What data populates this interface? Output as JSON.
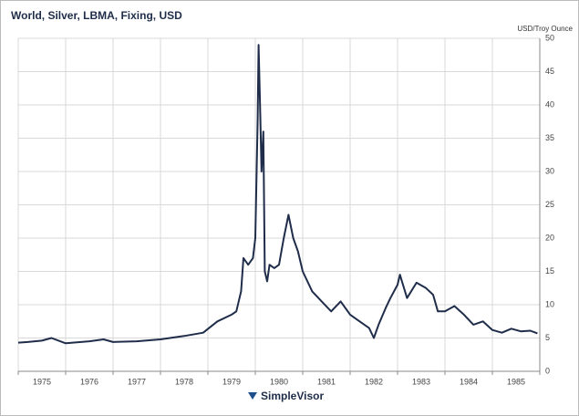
{
  "chart_data": {
    "type": "line",
    "title": "World, Silver, LBMA, Fixing, USD",
    "y_axis_label": "USD/Troy Ounce",
    "logo": "SimpleVisor",
    "x": [
      1975.0,
      1975.2,
      1975.5,
      1975.7,
      1976.0,
      1976.5,
      1976.8,
      1977.0,
      1977.5,
      1978.0,
      1978.5,
      1978.9,
      1979.2,
      1979.5,
      1979.6,
      1979.7,
      1979.75,
      1979.85,
      1979.95,
      1980.0,
      1980.05,
      1980.07,
      1980.1,
      1980.13,
      1980.17,
      1980.2,
      1980.25,
      1980.3,
      1980.4,
      1980.5,
      1980.6,
      1980.7,
      1980.8,
      1980.9,
      1981.0,
      1981.2,
      1981.4,
      1981.6,
      1981.8,
      1982.0,
      1982.2,
      1982.4,
      1982.5,
      1982.6,
      1982.75,
      1982.85,
      1983.0,
      1983.05,
      1983.2,
      1983.4,
      1983.6,
      1983.75,
      1983.85,
      1984.0,
      1984.2,
      1984.4,
      1984.6,
      1984.8,
      1985.0,
      1985.2,
      1985.4,
      1985.6,
      1985.8,
      1985.95
    ],
    "series": [
      {
        "name": "Silver",
        "color": "#1f2d4a",
        "values": [
          4.3,
          4.4,
          4.6,
          5.0,
          4.2,
          4.5,
          4.8,
          4.4,
          4.5,
          4.8,
          5.3,
          5.8,
          7.5,
          8.5,
          9.0,
          12,
          17,
          16,
          17,
          20,
          38,
          49,
          40,
          30,
          36,
          15,
          13.5,
          16,
          15.5,
          16,
          20,
          23.5,
          20,
          18,
          15,
          12,
          10.5,
          9,
          10.5,
          8.5,
          7.5,
          6.5,
          5.0,
          7,
          9.5,
          11,
          13,
          14.5,
          11,
          13.3,
          12.5,
          11.5,
          9,
          9,
          9.8,
          8.5,
          7,
          7.5,
          6.2,
          5.8,
          6.4,
          6.0,
          6.1,
          5.7
        ]
      }
    ],
    "xlim": [
      1975,
      1986
    ],
    "xgrid": [
      1975,
      1976,
      1977,
      1978,
      1979,
      1980,
      1981,
      1982,
      1983,
      1984,
      1985,
      1986
    ],
    "xticks": [
      {
        "value": 1975.5,
        "label": "1975"
      },
      {
        "value": 1976.5,
        "label": "1976"
      },
      {
        "value": 1977.5,
        "label": "1977"
      },
      {
        "value": 1978.5,
        "label": "1978"
      },
      {
        "value": 1979.5,
        "label": "1979"
      },
      {
        "value": 1980.5,
        "label": "1980"
      },
      {
        "value": 1981.5,
        "label": "1981"
      },
      {
        "value": 1982.5,
        "label": "1982"
      },
      {
        "value": 1983.5,
        "label": "1983"
      },
      {
        "value": 1984.5,
        "label": "1984"
      },
      {
        "value": 1985.5,
        "label": "1985"
      }
    ],
    "ylim": [
      0,
      50
    ],
    "yticks": [
      0,
      5,
      10,
      15,
      20,
      25,
      30,
      35,
      40,
      45,
      50
    ],
    "grid": true
  }
}
